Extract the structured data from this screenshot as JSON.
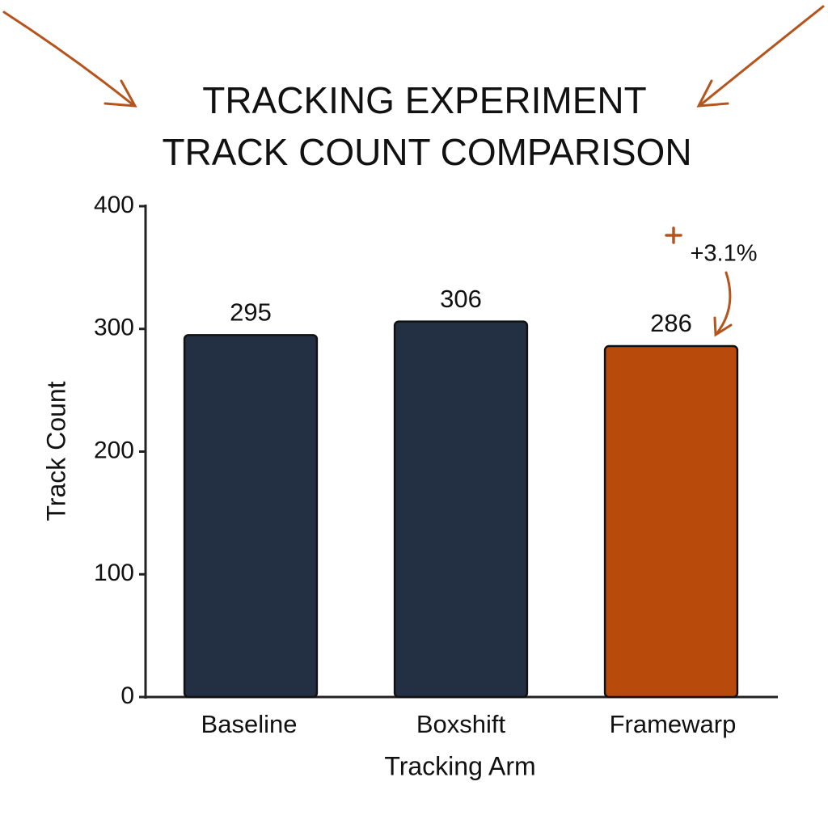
{
  "chart_data": {
    "type": "bar",
    "title": [
      "TRACKING EXPERIMENT",
      "TRACK COUNT COMPARISON"
    ],
    "x_label": "Tracking Arm",
    "y_label": "Track Count",
    "categories": [
      "Baseline",
      "Boxshift",
      "Framewarp"
    ],
    "values": [
      295,
      306,
      286
    ],
    "colors": [
      "#232f42",
      "#232f42",
      "#b84a0b"
    ],
    "ylim": [
      0,
      400
    ],
    "yticks": [
      0,
      100,
      200,
      300,
      400
    ],
    "grid": false,
    "annotation": "+3.1%"
  }
}
